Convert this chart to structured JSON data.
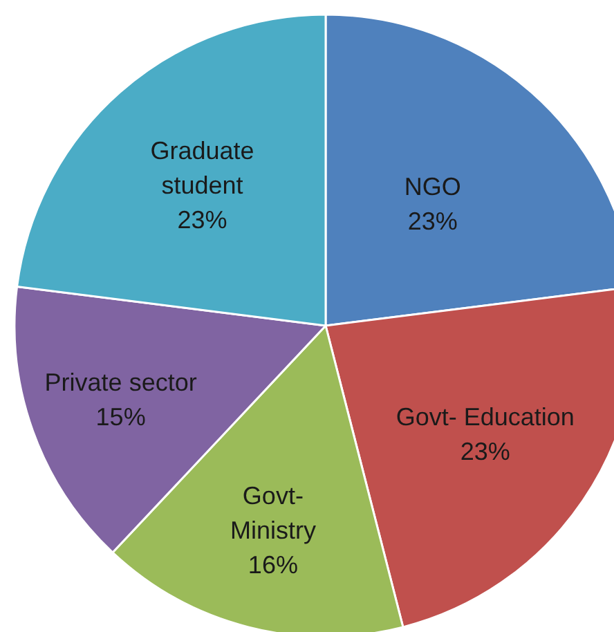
{
  "chart_data": {
    "type": "pie",
    "categories": [
      "NGO",
      "Govt- Education",
      "Govt- Ministry",
      "Private sector",
      "Graduate student"
    ],
    "values": [
      23,
      23,
      16,
      15,
      23
    ],
    "colors": [
      "#4f81bd",
      "#c0504d",
      "#9bbb59",
      "#8064a2",
      "#4bacc6"
    ],
    "value_labels": [
      "23%",
      "23%",
      "16%",
      "15%",
      "23%"
    ]
  }
}
